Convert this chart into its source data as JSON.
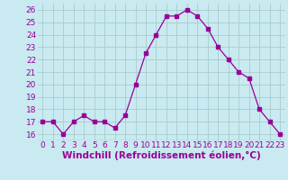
{
  "x": [
    0,
    1,
    2,
    3,
    4,
    5,
    6,
    7,
    8,
    9,
    10,
    11,
    12,
    13,
    14,
    15,
    16,
    17,
    18,
    19,
    20,
    21,
    22,
    23
  ],
  "y": [
    17,
    17,
    16,
    17,
    17.5,
    17,
    17,
    16.5,
    17.5,
    20,
    22.5,
    24,
    25.5,
    25.5,
    26,
    25.5,
    24.5,
    23,
    22,
    21,
    20.5,
    18,
    17,
    16
  ],
  "line_color": "#990099",
  "marker": "s",
  "marker_size": 2.5,
  "bg_color": "#c8eaf0",
  "grid_color": "#aacccc",
  "xlabel": "Windchill (Refroidissement éolien,°C)",
  "xlabel_color": "#990099",
  "tick_color": "#990099",
  "ylim": [
    15.5,
    26.5
  ],
  "yticks": [
    16,
    17,
    18,
    19,
    20,
    21,
    22,
    23,
    24,
    25,
    26
  ],
  "xticks": [
    0,
    1,
    2,
    3,
    4,
    5,
    6,
    7,
    8,
    9,
    10,
    11,
    12,
    13,
    14,
    15,
    16,
    17,
    18,
    19,
    20,
    21,
    22,
    23
  ],
  "tick_fontsize": 6.5,
  "xlabel_fontsize": 7.5
}
